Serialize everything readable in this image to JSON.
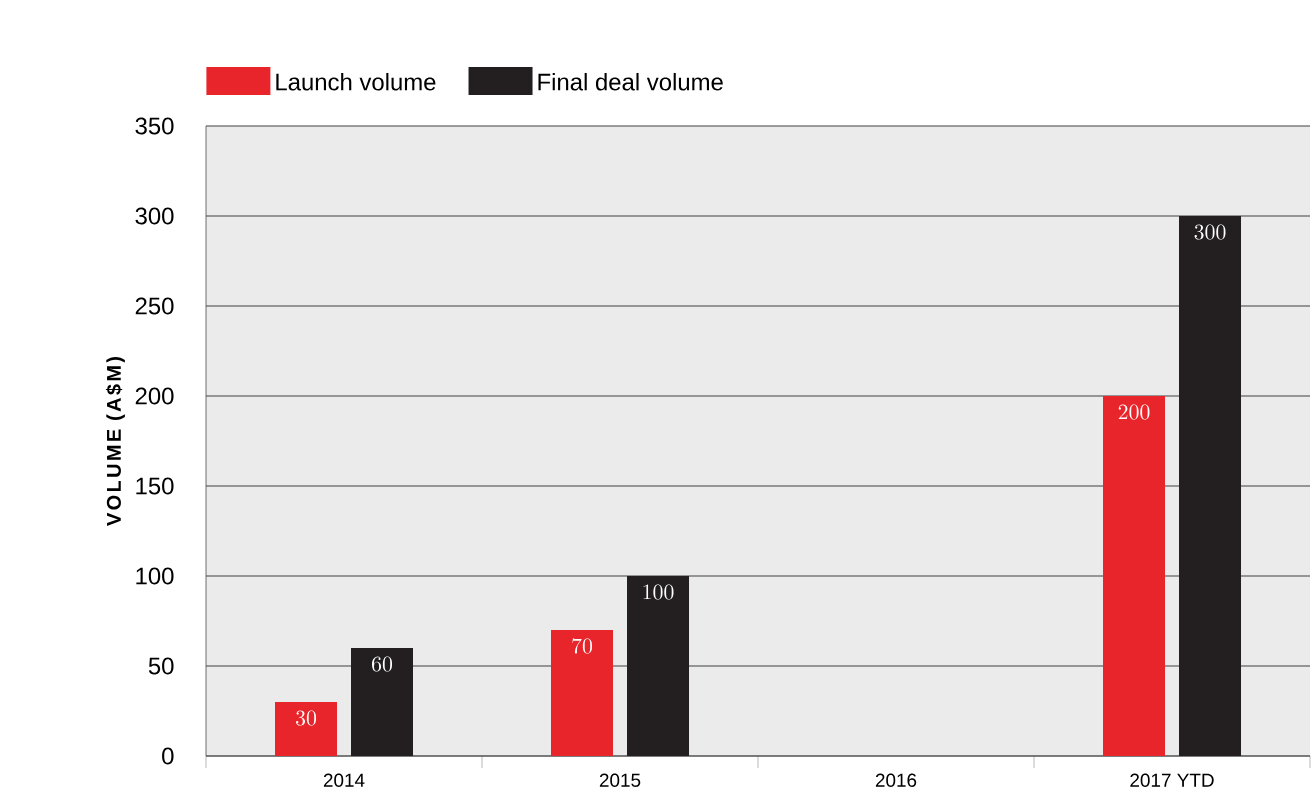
{
  "chart_data": {
    "type": "bar",
    "ylabel": "VOLUME (A$M)",
    "categories": [
      "2014",
      "2015",
      "2016",
      "2017 YTD"
    ],
    "series": [
      {
        "name": "Launch volume",
        "color": "#e8252a",
        "values": [
          30,
          70,
          null,
          200
        ]
      },
      {
        "name": "Final deal volume",
        "color": "#231f20",
        "values": [
          60,
          100,
          null,
          300
        ]
      }
    ],
    "ylim": [
      0,
      350
    ],
    "yticks": [
      0,
      50,
      100,
      150,
      200,
      250,
      300,
      350
    ],
    "grid": "y",
    "legend": "top left",
    "data_labels": true
  }
}
